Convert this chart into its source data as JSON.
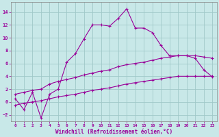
{
  "xlabel": "Windchill (Refroidissement éolien,°C)",
  "background_color": "#c8e8e8",
  "grid_color": "#a0c8c8",
  "line_color": "#990099",
  "xlim": [
    -0.5,
    23.5
  ],
  "ylim": [
    -3.0,
    15.5
  ],
  "xticks": [
    0,
    1,
    2,
    3,
    4,
    5,
    6,
    7,
    8,
    9,
    10,
    11,
    12,
    13,
    14,
    15,
    16,
    17,
    18,
    19,
    20,
    21,
    22,
    23
  ],
  "yticks": [
    -2,
    0,
    2,
    4,
    6,
    8,
    10,
    12,
    14
  ],
  "line1_x": [
    0,
    1,
    2,
    3,
    4,
    5,
    6,
    7,
    8,
    9,
    10,
    11,
    12,
    13,
    14,
    15,
    16,
    17,
    18,
    19,
    20,
    21,
    22,
    23
  ],
  "line1_y": [
    0.5,
    -1.2,
    1.5,
    -2.5,
    1.2,
    2.0,
    6.2,
    7.5,
    9.8,
    12.0,
    12.0,
    11.8,
    13.0,
    14.5,
    11.5,
    11.5,
    10.8,
    8.8,
    7.2,
    7.2,
    7.2,
    6.8,
    5.0,
    3.9
  ],
  "line2_x": [
    0,
    1,
    2,
    3,
    4,
    5,
    6,
    7,
    8,
    9,
    10,
    11,
    12,
    13,
    14,
    15,
    16,
    17,
    18,
    19,
    20,
    21,
    22,
    23
  ],
  "line2_y": [
    1.2,
    1.5,
    1.8,
    2.0,
    2.8,
    3.2,
    3.5,
    3.8,
    4.2,
    4.5,
    4.8,
    5.0,
    5.5,
    5.8,
    6.0,
    6.2,
    6.5,
    6.8,
    7.0,
    7.2,
    7.2,
    7.2,
    7.0,
    6.8
  ],
  "line3_x": [
    0,
    1,
    2,
    3,
    4,
    5,
    6,
    7,
    8,
    9,
    10,
    11,
    12,
    13,
    14,
    15,
    16,
    17,
    18,
    19,
    20,
    21,
    22,
    23
  ],
  "line3_y": [
    -0.5,
    -0.2,
    0.0,
    0.2,
    0.5,
    0.8,
    1.0,
    1.2,
    1.5,
    1.8,
    2.0,
    2.2,
    2.5,
    2.8,
    3.0,
    3.2,
    3.4,
    3.6,
    3.8,
    4.0,
    4.0,
    4.0,
    4.0,
    4.0
  ]
}
